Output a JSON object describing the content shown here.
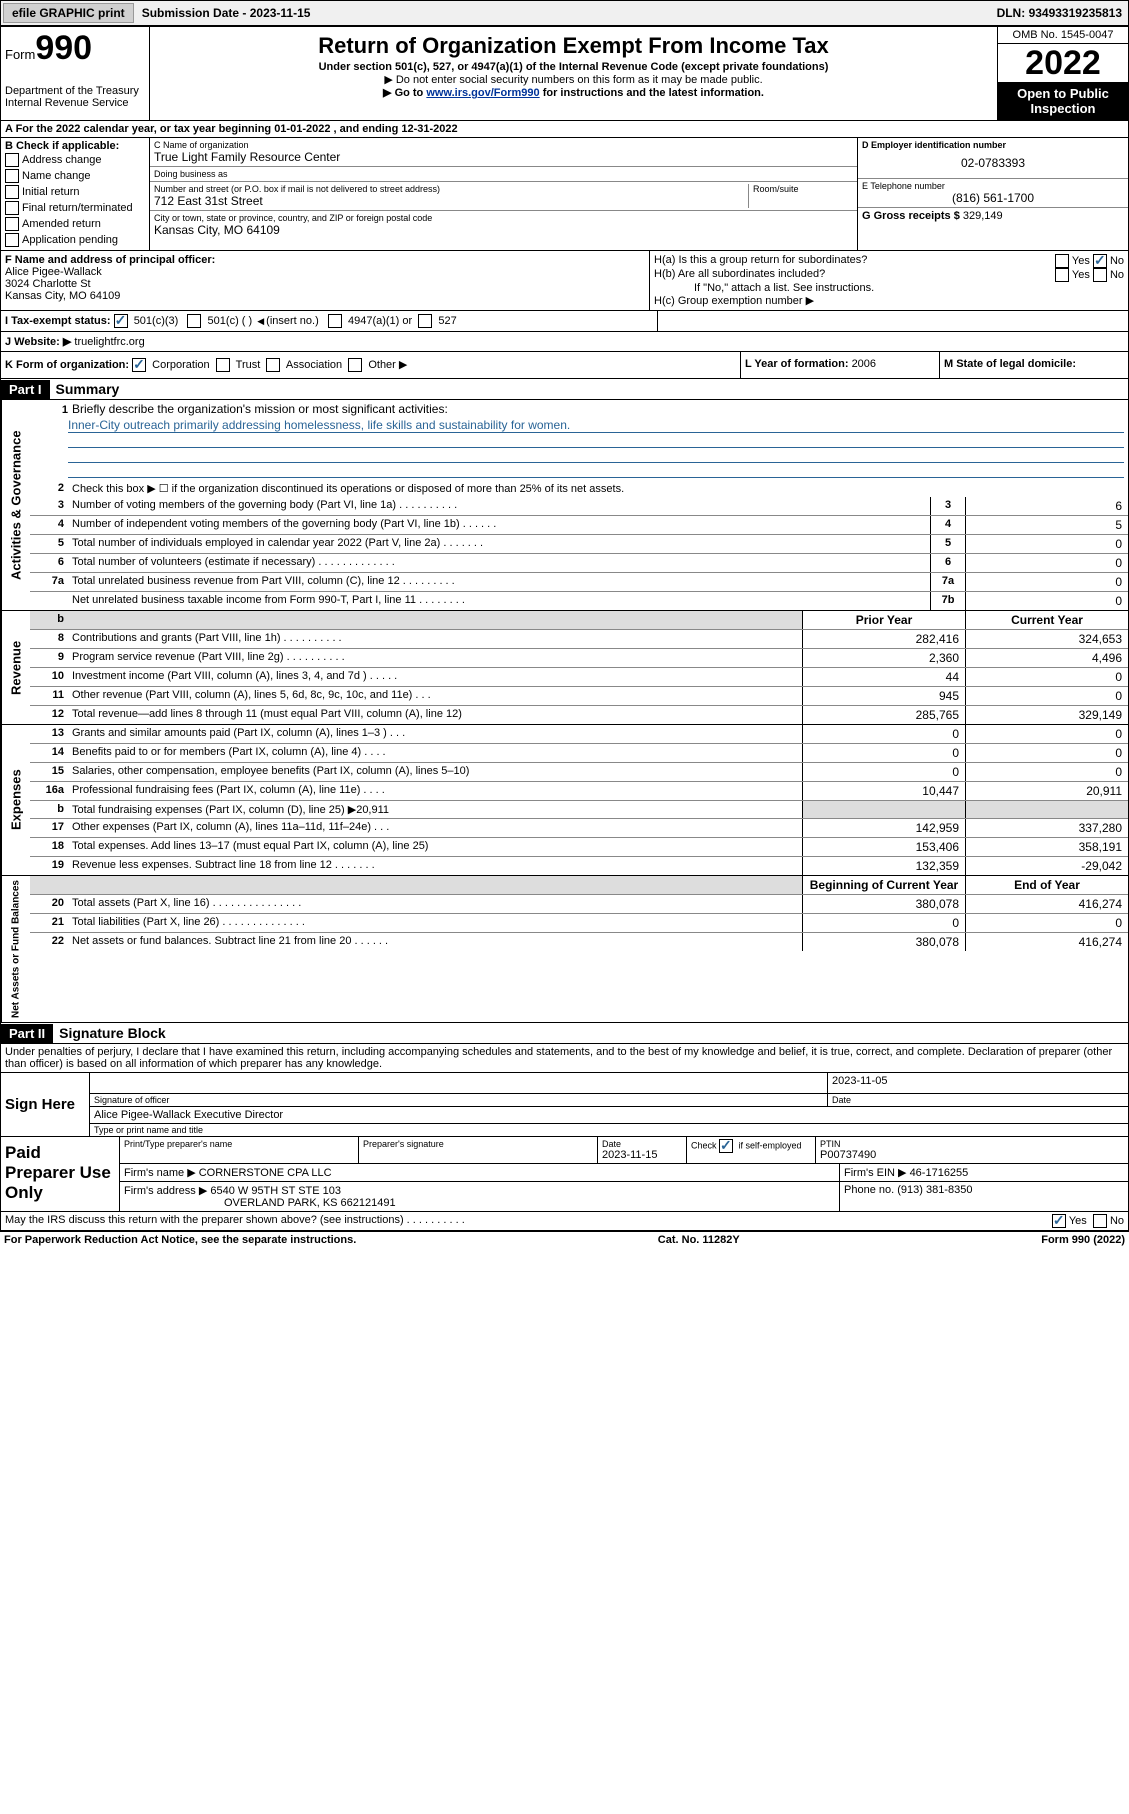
{
  "topbar": {
    "efile": "efile GRAPHIC print",
    "submission_label": "Submission Date - ",
    "submission_date": "2023-11-15",
    "dln_label": "DLN: ",
    "dln": "93493319235813"
  },
  "header": {
    "form_label": "Form",
    "form_num": "990",
    "dept": "Department of the Treasury",
    "irs": "Internal Revenue Service",
    "title": "Return of Organization Exempt From Income Tax",
    "sub": "Under section 501(c), 527, or 4947(a)(1) of the Internal Revenue Code (except private foundations)",
    "note1": "▶ Do not enter social security numbers on this form as it may be made public.",
    "note2_pre": "▶ Go to ",
    "note2_link": "www.irs.gov/Form990",
    "note2_post": " for instructions and the latest information.",
    "omb": "OMB No. 1545-0047",
    "year": "2022",
    "inspect": "Open to Public Inspection"
  },
  "line_a": "A For the 2022 calendar year, or tax year beginning 01-01-2022    , and ending 12-31-2022",
  "col_b": {
    "title": "B Check if applicable:",
    "items": [
      "Address change",
      "Name change",
      "Initial return",
      "Final return/terminated",
      "Amended return",
      "Application pending"
    ]
  },
  "col_c": {
    "name_label": "C Name of organization",
    "name": "True Light Family Resource Center",
    "dba_label": "Doing business as",
    "dba": "",
    "addr_label": "Number and street (or P.O. box if mail is not delivered to street address)",
    "room_label": "Room/suite",
    "addr": "712 East 31st Street",
    "city_label": "City or town, state or province, country, and ZIP or foreign postal code",
    "city": "Kansas City, MO  64109"
  },
  "col_d": {
    "ein_label": "D Employer identification number",
    "ein": "02-0783393",
    "phone_label": "E Telephone number",
    "phone": "(816) 561-1700",
    "gross_label": "G Gross receipts $ ",
    "gross": "329,149"
  },
  "row_f": {
    "label": "F Name and address of principal officer:",
    "name": "Alice Pigee-Wallack",
    "addr1": "3024 Charlotte St",
    "addr2": "Kansas City, MO  64109"
  },
  "row_h": {
    "a": "H(a)  Is this a group return for subordinates?",
    "b": "H(b)  Are all subordinates included?",
    "b_note": "If \"No,\" attach a list. See instructions.",
    "c": "H(c)  Group exemption number ▶",
    "yes": "Yes",
    "no": "No"
  },
  "row_i": {
    "label": "I   Tax-exempt status:",
    "o1": "501(c)(3)",
    "o2": "501(c) (  ) ",
    "o2b": "(insert no.)",
    "o3": "4947(a)(1) or",
    "o4": "527"
  },
  "row_j": {
    "label": "J   Website: ▶ ",
    "val": "truelightfrc.org"
  },
  "row_k": {
    "label": "K Form of organization:",
    "o1": "Corporation",
    "o2": "Trust",
    "o3": "Association",
    "o4": "Other ▶"
  },
  "row_l": {
    "label": "L Year of formation: ",
    "val": "2006"
  },
  "row_m": {
    "label": "M State of legal domicile:",
    "val": ""
  },
  "part1": {
    "header": "Part I",
    "title": "Summary"
  },
  "summary": {
    "l1_label": "Briefly describe the organization's mission or most significant activities:",
    "l1_val": "Inner-City outreach primarily addressing homelessness, life skills and sustainability for women.",
    "l2": "Check this box ▶ ☐  if the organization discontinued its operations or disposed of more than 25% of its net assets.",
    "lines_gov": [
      {
        "n": "3",
        "d": "Number of voting members of the governing body (Part VI, line 1a)  .    .    .    .    .    .    .    .    .    .",
        "rn": "3",
        "v": "6"
      },
      {
        "n": "4",
        "d": "Number of independent voting members of the governing body (Part VI, line 1b)   .    .    .    .    .    .",
        "rn": "4",
        "v": "5"
      },
      {
        "n": "5",
        "d": "Total number of individuals employed in calendar year 2022 (Part V, line 2a)    .    .    .    .    .    .    .",
        "rn": "5",
        "v": "0"
      },
      {
        "n": "6",
        "d": "Total number of volunteers (estimate if necessary)   .    .    .    .    .    .    .    .    .    .    .    .    .",
        "rn": "6",
        "v": "0"
      },
      {
        "n": "7a",
        "d": "Total unrelated business revenue from Part VIII, column (C), line 12   .    .    .    .    .    .    .    .    .",
        "rn": "7a",
        "v": "0"
      },
      {
        "n": "",
        "d": "Net unrelated business taxable income from Form 990-T, Part I, line 11   .    .    .    .    .    .    .    .",
        "rn": "7b",
        "v": "0"
      }
    ],
    "col_headers": {
      "prior": "Prior Year",
      "current": "Current Year",
      "begin": "Beginning of Current Year",
      "end": "End of Year"
    },
    "rev": [
      {
        "n": "8",
        "d": "Contributions and grants (Part VIII, line 1h)   .    .    .    .    .    .    .    .    .    .",
        "p": "282,416",
        "c": "324,653"
      },
      {
        "n": "9",
        "d": "Program service revenue (Part VIII, line 2g)   .    .    .    .    .    .    .    .    .    .",
        "p": "2,360",
        "c": "4,496"
      },
      {
        "n": "10",
        "d": "Investment income (Part VIII, column (A), lines 3, 4, and 7d )   .    .    .    .    .",
        "p": "44",
        "c": "0"
      },
      {
        "n": "11",
        "d": "Other revenue (Part VIII, column (A), lines 5, 6d, 8c, 9c, 10c, and 11e)   .    .    .",
        "p": "945",
        "c": "0"
      },
      {
        "n": "12",
        "d": "Total revenue—add lines 8 through 11 (must equal Part VIII, column (A), line 12)",
        "p": "285,765",
        "c": "329,149"
      }
    ],
    "exp": [
      {
        "n": "13",
        "d": "Grants and similar amounts paid (Part IX, column (A), lines 1–3 )   .    .    .",
        "p": "0",
        "c": "0"
      },
      {
        "n": "14",
        "d": "Benefits paid to or for members (Part IX, column (A), line 4)   .    .    .    .",
        "p": "0",
        "c": "0"
      },
      {
        "n": "15",
        "d": "Salaries, other compensation, employee benefits (Part IX, column (A), lines 5–10)",
        "p": "0",
        "c": "0"
      },
      {
        "n": "16a",
        "d": "Professional fundraising fees (Part IX, column (A), line 11e)   .    .    .    .",
        "p": "10,447",
        "c": "20,911"
      },
      {
        "n": "b",
        "d": "Total fundraising expenses (Part IX, column (D), line 25) ▶20,911",
        "p": "",
        "c": ""
      },
      {
        "n": "17",
        "d": "Other expenses (Part IX, column (A), lines 11a–11d, 11f–24e)   .    .    .",
        "p": "142,959",
        "c": "337,280"
      },
      {
        "n": "18",
        "d": "Total expenses. Add lines 13–17 (must equal Part IX, column (A), line 25)",
        "p": "153,406",
        "c": "358,191"
      },
      {
        "n": "19",
        "d": "Revenue less expenses. Subtract line 18 from line 12   .    .    .    .    .    .    .",
        "p": "132,359",
        "c": "-29,042"
      }
    ],
    "net": [
      {
        "n": "20",
        "d": "Total assets (Part X, line 16)   .    .    .    .    .    .    .    .    .    .    .    .    .    .    .",
        "p": "380,078",
        "c": "416,274"
      },
      {
        "n": "21",
        "d": "Total liabilities (Part X, line 26)   .    .    .    .    .    .    .    .    .    .    .    .    .    .",
        "p": "0",
        "c": "0"
      },
      {
        "n": "22",
        "d": "Net assets or fund balances. Subtract line 21 from line 20   .    .    .    .    .    .",
        "p": "380,078",
        "c": "416,274"
      }
    ]
  },
  "vtabs": {
    "gov": "Activities & Governance",
    "rev": "Revenue",
    "exp": "Expenses",
    "net": "Net Assets or Fund Balances"
  },
  "part2": {
    "header": "Part II",
    "title": "Signature Block"
  },
  "penalties": "Under penalties of perjury, I declare that I have examined this return, including accompanying schedules and statements, and to the best of my knowledge and belief, it is true, correct, and complete. Declaration of preparer (other than officer) is based on all information of which preparer has any knowledge.",
  "sign": {
    "label": "Sign Here",
    "sig_label": "Signature of officer",
    "date_label": "Date",
    "date": "2023-11-05",
    "name": "Alice Pigee-Wallack  Executive Director",
    "name_label": "Type or print name and title"
  },
  "paid": {
    "label": "Paid Preparer Use Only",
    "h1": "Print/Type preparer's name",
    "h2": "Preparer's signature",
    "h3": "Date",
    "h3v": "2023-11-15",
    "h4": "Check ",
    "h4b": " if self-employed",
    "h5": "PTIN",
    "h5v": "P00737490",
    "firm_label": "Firm's name   ▶ ",
    "firm": "CORNERSTONE CPA LLC",
    "ein_label": "Firm's EIN ▶ ",
    "ein": "46-1716255",
    "addr_label": "Firm's address ▶ ",
    "addr1": "6540 W 95TH ST STE 103",
    "addr2": "OVERLAND PARK, KS  662121491",
    "phone_label": "Phone no. ",
    "phone": "(913) 381-8350"
  },
  "discuss": {
    "q": "May the IRS discuss this return with the preparer shown above? (see instructions)   .    .    .    .    .    .    .    .    .    .",
    "yes": "Yes",
    "no": "No"
  },
  "footer": {
    "left": "For Paperwork Reduction Act Notice, see the separate instructions.",
    "mid": "Cat. No. 11282Y",
    "right": "Form 990 (2022)"
  }
}
